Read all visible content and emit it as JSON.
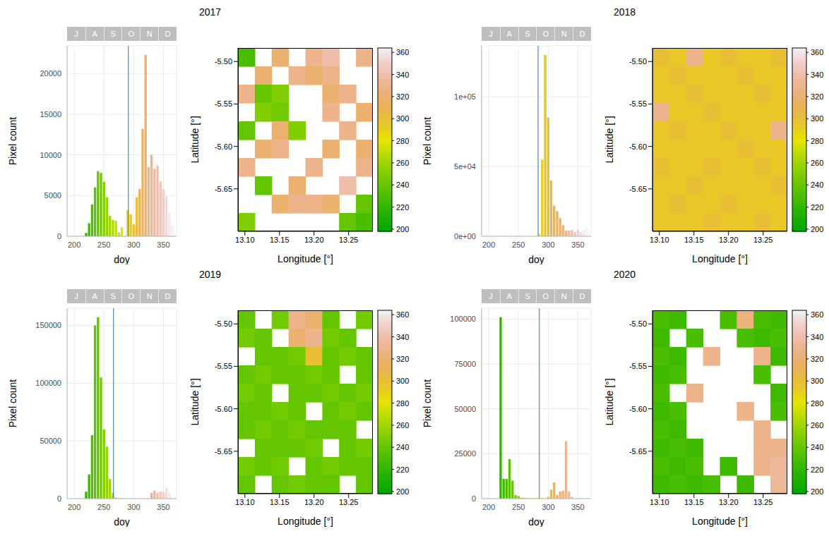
{
  "chart_data": [
    {
      "title": "2017",
      "type": "histogram",
      "x_label": "doy",
      "y_label": "Pixel count",
      "grid": true,
      "months": [
        "J",
        "A",
        "S",
        "O",
        "N",
        "D"
      ],
      "bins": [
        218,
        223,
        228,
        233,
        238,
        243,
        248,
        253,
        258,
        263,
        268,
        273,
        278,
        283,
        288,
        293,
        298,
        303,
        308,
        313,
        318,
        323,
        328,
        333,
        338,
        343,
        348,
        353,
        358,
        363,
        368
      ],
      "counts": [
        400,
        1600,
        3900,
        6000,
        8000,
        7800,
        6700,
        4800,
        2500,
        2000,
        1900,
        500,
        1100,
        0,
        3200,
        2700,
        1500,
        4800,
        5800,
        13200,
        22300,
        8500,
        10000,
        8300,
        8700,
        6700,
        5800,
        4900,
        2900,
        1400
      ],
      "xlim": [
        188,
        372
      ],
      "xticks": [
        200,
        250,
        300,
        350
      ],
      "ylim": [
        0,
        23400
      ],
      "yticks": [
        0,
        5000,
        10000,
        15000,
        20000
      ],
      "reference_line": {
        "x": 291,
        "color": "#4a86c8"
      },
      "map": {
        "type": "heatmap",
        "x_label": "Longitude [°]",
        "y_label": "Latitude [°]",
        "xlim": [
          13.09,
          13.285
        ],
        "xticks": [
          {
            "value": 13.1,
            "label": "13.10"
          },
          13.15,
          {
            "value": 13.2,
            "label": "13.20"
          },
          13.25
        ],
        "ylim": [
          -5.7,
          -5.484
        ],
        "yticks": [
          {
            "value": -5.5,
            "label": "-5.50"
          },
          -5.55,
          {
            "value": -5.6,
            "label": "-5.60"
          },
          -5.65
        ],
        "lon": [
          13.1022,
          13.1266,
          13.1509,
          13.1753,
          13.1997,
          13.2241,
          13.2484,
          13.2728
        ],
        "lat": [
          -5.4948,
          -5.5164,
          -5.538,
          -5.5596,
          -5.5812,
          -5.6028,
          -5.6244,
          -5.646,
          -5.6676,
          -5.6892
        ],
        "cells": [
          [
            230,
            null,
            320,
            null,
            330,
            340,
            null,
            330
          ],
          [
            null,
            320,
            null,
            330,
            320,
            330,
            null,
            null
          ],
          [
            330,
            240,
            250,
            null,
            null,
            320,
            330,
            null
          ],
          [
            null,
            250,
            245,
            null,
            null,
            330,
            null,
            320
          ],
          [
            240,
            null,
            320,
            250,
            null,
            null,
            330,
            null
          ],
          [
            null,
            320,
            330,
            null,
            null,
            320,
            null,
            320
          ],
          [
            330,
            null,
            null,
            null,
            330,
            null,
            null,
            330
          ],
          [
            null,
            240,
            null,
            320,
            null,
            null,
            340,
            null
          ],
          [
            null,
            null,
            320,
            330,
            330,
            320,
            null,
            240
          ],
          [
            250,
            null,
            null,
            null,
            null,
            null,
            240,
            230
          ]
        ],
        "colorbar": {
          "range": [
            198,
            364
          ],
          "ticks": [
            200,
            220,
            240,
            260,
            280,
            300,
            320,
            340,
            360
          ]
        }
      }
    },
    {
      "title": "2018",
      "type": "histogram",
      "x_label": "doy",
      "y_label": "Pixel count",
      "grid": true,
      "months": [
        "J",
        "A",
        "S",
        "O",
        "N",
        "D"
      ],
      "bins": [
        218,
        223,
        228,
        233,
        238,
        243,
        248,
        253,
        258,
        263,
        268,
        273,
        278,
        283,
        288,
        293,
        298,
        303,
        308,
        313,
        318,
        323,
        328,
        333,
        338,
        343,
        348,
        353,
        358,
        363,
        368
      ],
      "counts": [
        0,
        0,
        0,
        0,
        0,
        0,
        0,
        0,
        0,
        0,
        0,
        0,
        0,
        1500,
        55000,
        130000,
        85000,
        40000,
        22000,
        18000,
        13000,
        8000,
        4000,
        4000,
        4500,
        3000,
        4500,
        3000,
        4500,
        6000
      ],
      "xlim": [
        188,
        372
      ],
      "xticks": [
        200,
        250,
        300,
        350
      ],
      "ylim": [
        0,
        136500
      ],
      "yticks": [
        {
          "value": 0,
          "label": "0e+00"
        },
        {
          "value": 50000,
          "label": "5e+04"
        },
        {
          "value": 100000,
          "label": "1e+05"
        }
      ],
      "reference_line": {
        "x": 283,
        "color": "#4a86c8"
      },
      "map": {
        "type": "heatmap",
        "x_label": "Longitude [°]",
        "y_label": "Latitude [°]",
        "xlim": [
          13.09,
          13.285
        ],
        "xticks": [
          {
            "value": 13.1,
            "label": "13.10"
          },
          13.15,
          {
            "value": 13.2,
            "label": "13.20"
          },
          13.25
        ],
        "ylim": [
          -5.7,
          -5.484
        ],
        "yticks": [
          {
            "value": -5.5,
            "label": "-5.50"
          },
          -5.55,
          {
            "value": -5.6,
            "label": "-5.60"
          },
          -5.65
        ],
        "lon": [
          13.1022,
          13.1266,
          13.1509,
          13.1753,
          13.1997,
          13.2241,
          13.2484,
          13.2728
        ],
        "lat": [
          -5.4948,
          -5.5164,
          -5.538,
          -5.5596,
          -5.5812,
          -5.6028,
          -5.6244,
          -5.646,
          -5.6676,
          -5.6892
        ],
        "cells": [
          [
            300,
            295,
            330,
            295,
            300,
            295,
            295,
            300
          ],
          [
            295,
            300,
            295,
            295,
            295,
            300,
            295,
            295
          ],
          [
            295,
            295,
            300,
            295,
            295,
            295,
            300,
            295
          ],
          [
            330,
            295,
            295,
            300,
            295,
            295,
            295,
            295
          ],
          [
            295,
            300,
            295,
            295,
            300,
            295,
            295,
            330
          ],
          [
            295,
            295,
            295,
            295,
            295,
            300,
            295,
            295
          ],
          [
            300,
            295,
            295,
            300,
            295,
            295,
            300,
            295
          ],
          [
            295,
            295,
            300,
            295,
            295,
            295,
            295,
            300
          ],
          [
            295,
            300,
            295,
            295,
            300,
            295,
            295,
            295
          ],
          [
            295,
            295,
            295,
            300,
            295,
            295,
            300,
            295
          ]
        ],
        "colorbar": {
          "range": [
            198,
            364
          ],
          "ticks": [
            200,
            220,
            240,
            260,
            280,
            300,
            320,
            340,
            360
          ]
        }
      }
    },
    {
      "title": "2019",
      "type": "histogram",
      "x_label": "doy",
      "y_label": "Pixel count",
      "grid": true,
      "months": [
        "J",
        "A",
        "S",
        "O",
        "N",
        "D"
      ],
      "bins": [
        218,
        223,
        228,
        233,
        238,
        243,
        248,
        253,
        258,
        263,
        268,
        273,
        278,
        283,
        288,
        293,
        298,
        303,
        308,
        313,
        318,
        323,
        328,
        333,
        338,
        343,
        348,
        353,
        358,
        363,
        368
      ],
      "counts": [
        6000,
        21000,
        55000,
        150000,
        157000,
        105000,
        60000,
        45000,
        17000,
        5000,
        1000,
        500,
        200,
        0,
        0,
        0,
        0,
        0,
        0,
        0,
        0,
        0,
        5000,
        7000,
        5000,
        6000,
        6000,
        9000,
        5000,
        0
      ],
      "xlim": [
        188,
        372
      ],
      "xticks": [
        200,
        250,
        300,
        350
      ],
      "ylim": [
        0,
        165000
      ],
      "yticks": [
        0,
        50000,
        100000,
        150000
      ],
      "reference_line": {
        "x": 266,
        "color": "#4a86c8"
      },
      "map": {
        "type": "heatmap",
        "x_label": "Longitude [°]",
        "y_label": "Latitude [°]",
        "xlim": [
          13.09,
          13.285
        ],
        "xticks": [
          {
            "value": 13.1,
            "label": "13.10"
          },
          13.15,
          {
            "value": 13.2,
            "label": "13.20"
          },
          13.25
        ],
        "ylim": [
          -5.7,
          -5.484
        ],
        "yticks": [
          {
            "value": -5.5,
            "label": "-5.50"
          },
          -5.55,
          {
            "value": -5.6,
            "label": "-5.60"
          },
          -5.65
        ],
        "lon": [
          13.1022,
          13.1266,
          13.1509,
          13.1753,
          13.1997,
          13.2241,
          13.2484,
          13.2728
        ],
        "lat": [
          -5.4948,
          -5.5164,
          -5.538,
          -5.5596,
          -5.5812,
          -5.6028,
          -5.6244,
          -5.646,
          -5.6676,
          -5.6892
        ],
        "cells": [
          [
            240,
            null,
            245,
            330,
            320,
            240,
            null,
            245
          ],
          [
            245,
            240,
            null,
            320,
            330,
            245,
            240,
            null
          ],
          [
            null,
            240,
            240,
            245,
            300,
            240,
            245,
            240
          ],
          [
            240,
            245,
            240,
            240,
            245,
            240,
            null,
            240
          ],
          [
            245,
            240,
            null,
            240,
            240,
            245,
            240,
            245
          ],
          [
            240,
            240,
            245,
            240,
            null,
            240,
            245,
            240
          ],
          [
            240,
            245,
            240,
            245,
            240,
            240,
            240,
            null
          ],
          [
            null,
            240,
            240,
            240,
            245,
            null,
            240,
            245
          ],
          [
            245,
            240,
            245,
            null,
            240,
            245,
            240,
            240
          ],
          [
            240,
            null,
            240,
            245,
            240,
            240,
            null,
            240
          ]
        ],
        "colorbar": {
          "range": [
            198,
            364
          ],
          "ticks": [
            200,
            220,
            240,
            260,
            280,
            300,
            320,
            340,
            360
          ]
        }
      }
    },
    {
      "title": "2020",
      "type": "histogram",
      "x_label": "doy",
      "y_label": "Pixel count",
      "grid": true,
      "months": [
        "J",
        "A",
        "S",
        "O",
        "N",
        "D"
      ],
      "bins": [
        218,
        223,
        228,
        233,
        238,
        243,
        248,
        253,
        258,
        263,
        268,
        273,
        278,
        283,
        288,
        293,
        298,
        303,
        308,
        313,
        318,
        323,
        328,
        333,
        338,
        343,
        348,
        353,
        358,
        363,
        368
      ],
      "counts": [
        101000,
        11000,
        11000,
        22000,
        10000,
        2000,
        1500,
        500,
        500,
        300,
        200,
        200,
        300,
        200,
        300,
        0,
        1000,
        5000,
        9000,
        2000,
        4000,
        4500,
        32000,
        4000,
        1000,
        0,
        0,
        0,
        0,
        0
      ],
      "xlim": [
        188,
        372
      ],
      "xticks": [
        200,
        250,
        300,
        350
      ],
      "ylim": [
        0,
        106000
      ],
      "yticks": [
        0,
        25000,
        50000,
        75000,
        100000
      ],
      "reference_line": {
        "x": 285,
        "color": "#4a86c8"
      },
      "map": {
        "type": "heatmap",
        "x_label": "Longitude [°]",
        "y_label": "Latitude [°]",
        "xlim": [
          13.09,
          13.285
        ],
        "xticks": [
          {
            "value": 13.1,
            "label": "13.10"
          },
          13.15,
          {
            "value": 13.2,
            "label": "13.20"
          },
          13.25
        ],
        "ylim": [
          -5.7,
          -5.484
        ],
        "yticks": [
          {
            "value": -5.5,
            "label": "-5.50"
          },
          -5.55,
          {
            "value": -5.6,
            "label": "-5.60"
          },
          -5.65
        ],
        "lon": [
          13.1022,
          13.1266,
          13.1509,
          13.1753,
          13.1997,
          13.2241,
          13.2484,
          13.2728
        ],
        "lat": [
          -5.4948,
          -5.5164,
          -5.538,
          -5.5596,
          -5.5812,
          -5.6028,
          -5.6244,
          -5.646,
          -5.6676,
          -5.6892
        ],
        "cells": [
          [
            230,
            225,
            null,
            null,
            230,
            325,
            230,
            225
          ],
          [
            225,
            null,
            230,
            null,
            null,
            230,
            225,
            230
          ],
          [
            230,
            225,
            null,
            330,
            null,
            null,
            330,
            225
          ],
          [
            225,
            230,
            null,
            null,
            null,
            null,
            230,
            null
          ],
          [
            230,
            null,
            330,
            null,
            null,
            null,
            null,
            225
          ],
          [
            225,
            230,
            null,
            null,
            null,
            330,
            null,
            230
          ],
          [
            230,
            225,
            null,
            null,
            null,
            null,
            330,
            null
          ],
          [
            225,
            230,
            225,
            null,
            null,
            null,
            330,
            330
          ],
          [
            230,
            225,
            230,
            null,
            225,
            null,
            330,
            335
          ],
          [
            225,
            230,
            225,
            230,
            null,
            225,
            null,
            335
          ]
        ],
        "colorbar": {
          "range": [
            198,
            364
          ],
          "ticks": [
            200,
            220,
            240,
            260,
            280,
            300,
            320,
            340,
            360
          ]
        }
      }
    }
  ]
}
